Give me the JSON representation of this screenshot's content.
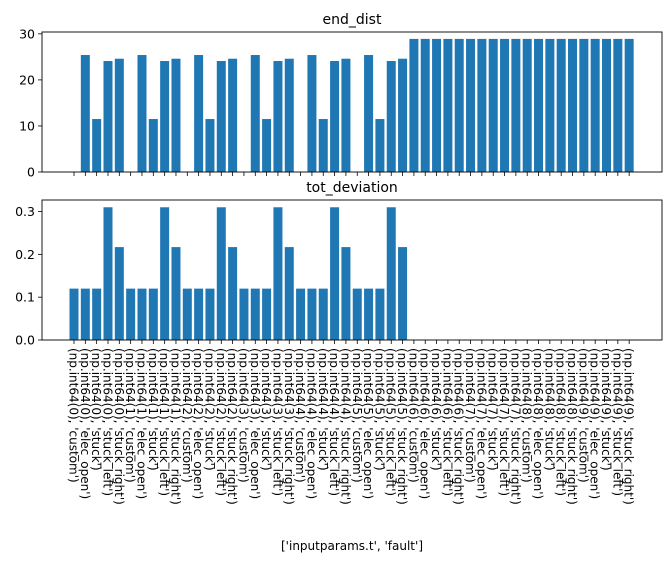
{
  "chart_data": [
    {
      "type": "bar",
      "title": "end_dist",
      "ylim": [
        0,
        30.4
      ],
      "yticks": [
        0,
        10,
        20,
        30
      ],
      "color": "#1f77b4",
      "values": [
        0,
        25.4,
        11.5,
        24.1,
        24.6,
        0,
        25.4,
        11.5,
        24.1,
        24.6,
        0,
        25.4,
        11.5,
        24.1,
        24.6,
        0,
        25.4,
        11.5,
        24.1,
        24.6,
        0,
        25.4,
        11.5,
        24.1,
        24.6,
        0,
        25.4,
        11.5,
        24.1,
        24.6,
        28.9,
        28.9,
        28.9,
        28.9,
        28.9,
        28.9,
        28.9,
        28.9,
        28.9,
        28.9,
        28.9,
        28.9,
        28.9,
        28.9,
        28.9,
        28.9,
        28.9,
        28.9,
        28.9,
        28.9
      ]
    },
    {
      "type": "bar",
      "title": "tot_deviation",
      "ylim": [
        0,
        0.327
      ],
      "yticks": [
        0.0,
        0.1,
        0.2,
        0.3
      ],
      "color": "#1f77b4",
      "values": [
        0.12,
        0.12,
        0.12,
        0.31,
        0.217,
        0.12,
        0.12,
        0.12,
        0.31,
        0.217,
        0.12,
        0.12,
        0.12,
        0.31,
        0.217,
        0.12,
        0.12,
        0.12,
        0.31,
        0.217,
        0.12,
        0.12,
        0.12,
        0.31,
        0.217,
        0.12,
        0.12,
        0.12,
        0.31,
        0.217,
        0,
        0,
        0,
        0,
        0,
        0,
        0,
        0,
        0,
        0,
        0,
        0,
        0,
        0,
        0,
        0,
        0,
        0,
        0,
        0
      ]
    }
  ],
  "xlabel": "['inputparams.t', 'fault']",
  "categories": [
    "(np.int64(0), 'custom')",
    "(np.int64(0), 'elec_open')",
    "(np.int64(0), 'stuck')",
    "(np.int64(0), 'stuck_left')",
    "(np.int64(0), 'stuck_right')",
    "(np.int64(1), 'custom')",
    "(np.int64(1), 'elec_open')",
    "(np.int64(1), 'stuck')",
    "(np.int64(1), 'stuck_left')",
    "(np.int64(1), 'stuck_right')",
    "(np.int64(2), 'custom')",
    "(np.int64(2), 'elec_open')",
    "(np.int64(2), 'stuck')",
    "(np.int64(2), 'stuck_left')",
    "(np.int64(2), 'stuck_right')",
    "(np.int64(3), 'custom')",
    "(np.int64(3), 'elec_open')",
    "(np.int64(3), 'stuck')",
    "(np.int64(3), 'stuck_left')",
    "(np.int64(3), 'stuck_right')",
    "(np.int64(4), 'custom')",
    "(np.int64(4), 'elec_open')",
    "(np.int64(4), 'stuck')",
    "(np.int64(4), 'stuck_left')",
    "(np.int64(4), 'stuck_right')",
    "(np.int64(5), 'custom')",
    "(np.int64(5), 'elec_open')",
    "(np.int64(5), 'stuck')",
    "(np.int64(5), 'stuck_left')",
    "(np.int64(5), 'stuck_right')",
    "(np.int64(6), 'custom')",
    "(np.int64(6), 'elec_open')",
    "(np.int64(6), 'stuck')",
    "(np.int64(6), 'stuck_left')",
    "(np.int64(6), 'stuck_right')",
    "(np.int64(7), 'custom')",
    "(np.int64(7), 'elec_open')",
    "(np.int64(7), 'stuck')",
    "(np.int64(7), 'stuck_left')",
    "(np.int64(7), 'stuck_right')",
    "(np.int64(8), 'custom')",
    "(np.int64(8), 'elec_open')",
    "(np.int64(8), 'stuck')",
    "(np.int64(8), 'stuck_left')",
    "(np.int64(8), 'stuck_right')",
    "(np.int64(9), 'custom')",
    "(np.int64(9), 'elec_open')",
    "(np.int64(9), 'stuck')",
    "(np.int64(9), 'stuck_left')",
    "(np.int64(9), 'stuck_right')"
  ]
}
